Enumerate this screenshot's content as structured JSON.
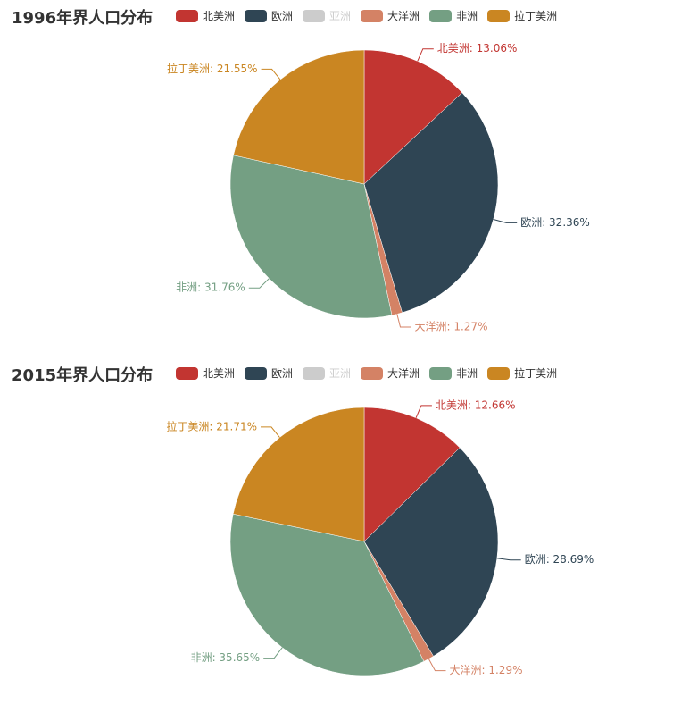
{
  "chart_data": [
    {
      "type": "pie",
      "title": "1996年界人口分布",
      "legend": [
        {
          "name": "北美洲",
          "color": "#c23531",
          "active": true
        },
        {
          "name": "欧洲",
          "color": "#2f4554",
          "active": true
        },
        {
          "name": "亚洲",
          "color": "#cccccc",
          "active": false
        },
        {
          "name": "大洋洲",
          "color": "#d48265",
          "active": true
        },
        {
          "name": "非洲",
          "color": "#749f83",
          "active": true
        },
        {
          "name": "拉丁美洲",
          "color": "#ca8622",
          "active": true
        }
      ],
      "slices": [
        {
          "name": "北美洲",
          "value": 13.06,
          "color": "#c23531",
          "label": "北美洲: 13.06%"
        },
        {
          "name": "欧洲",
          "value": 32.36,
          "color": "#2f4554",
          "label": "欧洲: 32.36%"
        },
        {
          "name": "大洋洲",
          "value": 1.27,
          "color": "#d48265",
          "label": "大洋洲: 1.27%"
        },
        {
          "name": "非洲",
          "value": 31.76,
          "color": "#749f83",
          "label": "非洲: 31.76%"
        },
        {
          "name": "拉丁美洲",
          "value": 21.55,
          "color": "#ca8622",
          "label": "拉丁美洲: 21.55%"
        }
      ]
    },
    {
      "type": "pie",
      "title": "2015年界人口分布",
      "legend": [
        {
          "name": "北美洲",
          "color": "#c23531",
          "active": true
        },
        {
          "name": "欧洲",
          "color": "#2f4554",
          "active": true
        },
        {
          "name": "亚洲",
          "color": "#cccccc",
          "active": false
        },
        {
          "name": "大洋洲",
          "color": "#d48265",
          "active": true
        },
        {
          "name": "非洲",
          "color": "#749f83",
          "active": true
        },
        {
          "name": "拉丁美洲",
          "color": "#ca8622",
          "active": true
        }
      ],
      "slices": [
        {
          "name": "北美洲",
          "value": 12.66,
          "color": "#c23531",
          "label": "北美洲: 12.66%"
        },
        {
          "name": "欧洲",
          "value": 28.69,
          "color": "#2f4554",
          "label": "欧洲: 28.69%"
        },
        {
          "name": "大洋洲",
          "value": 1.29,
          "color": "#d48265",
          "label": "大洋洲: 1.29%"
        },
        {
          "name": "非洲",
          "value": 35.65,
          "color": "#749f83",
          "label": "非洲: 35.65%"
        },
        {
          "name": "拉丁美洲",
          "value": 21.71,
          "color": "#ca8622",
          "label": "拉丁美洲: 21.71%"
        }
      ]
    }
  ]
}
